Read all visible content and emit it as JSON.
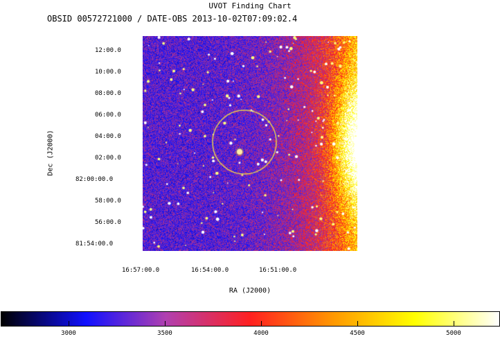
{
  "header": {
    "title": "UVOT Finding Chart",
    "subtitle": "OBSID 00572721000 / DATE-OBS 2013-10-02T07:09:02.4"
  },
  "axes": {
    "ylabel": "Dec  (J2000)",
    "xlabel": "RA  (J2000)",
    "yticks": [
      "12:00.0",
      "10:00.0",
      "08:00.0",
      "06:00.0",
      "04:00.0",
      "02:00.0",
      "82:00:00.0",
      "58:00.0",
      "56:00.0",
      "81:54:00.0"
    ],
    "xticks": [
      "16:57:00.0",
      "16:54:00.0",
      "16:51:00.0"
    ]
  },
  "colorbar": {
    "ticks": [
      "3000",
      "3500",
      "4000",
      "4500",
      "5000"
    ],
    "colors": [
      "#000000",
      "#1010ff",
      "#b040b0",
      "#ff2020",
      "#ff9a00",
      "#ffff00",
      "#ffffff"
    ]
  },
  "overlay": {
    "circle_color": "#e8d050"
  }
}
